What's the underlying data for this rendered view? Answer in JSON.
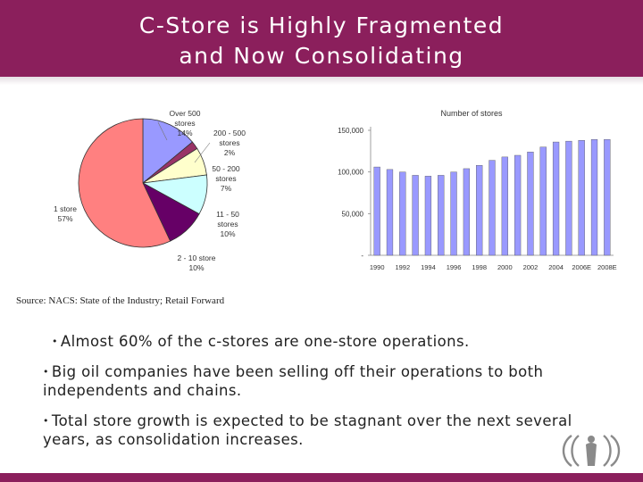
{
  "slide": {
    "title_line1": "C-Store is Highly Fragmented",
    "title_line2": "and Now Consolidating",
    "source": "Source: NACS: State of the Industry; Retail Forward",
    "bullets": [
      "Almost 60% of the c-stores are one-store operations.",
      "Big oil companies have been selling off their operations to both independents and chains.",
      "Total store growth is expected to be stagnant over the next several years, as consolidation increases."
    ],
    "colors": {
      "brand": "#8b1f5c",
      "pie_over500": "#9999ff",
      "pie_200_500": "#993366",
      "pie_50_200": "#ffffcc",
      "pie_11_50": "#ccffff",
      "pie_2_10": "#660066",
      "pie_1store": "#ff8080",
      "bars": "#9999ff"
    }
  },
  "chart_data": [
    {
      "type": "pie",
      "slices": [
        {
          "label_lines": [
            "Over 500",
            "stores",
            "14%"
          ],
          "value": 14
        },
        {
          "label_lines": [
            "200 - 500",
            "stores",
            "2%"
          ],
          "value": 2
        },
        {
          "label_lines": [
            "50 - 200",
            "stores",
            "7%"
          ],
          "value": 7
        },
        {
          "label_lines": [
            "11 - 50",
            "stores",
            "10%"
          ],
          "value": 10
        },
        {
          "label_lines": [
            "2 - 10 store",
            "10%"
          ],
          "value": 10
        },
        {
          "label_lines": [
            "1 store",
            "57%"
          ],
          "value": 57
        }
      ]
    },
    {
      "type": "bar",
      "title": "Number of stores",
      "categories": [
        "1990",
        "",
        "1992",
        "",
        "1994",
        "",
        "1996",
        "",
        "1998",
        "",
        "2000",
        "",
        "2002",
        "",
        "2004",
        "",
        "2006E",
        "",
        "2008E"
      ],
      "values": [
        106000,
        103000,
        100000,
        96000,
        95000,
        96000,
        100000,
        104000,
        108000,
        114000,
        118000,
        120000,
        124000,
        130000,
        136000,
        137000,
        138000,
        139000,
        139000
      ],
      "yticks": [
        {
          "value": 150000,
          "label": "150,000"
        },
        {
          "value": 100000,
          "label": "100,000"
        },
        {
          "value": 50000,
          "label": "50,000"
        },
        {
          "value": 0,
          "label": "-"
        }
      ],
      "ylim": [
        0,
        150000
      ]
    }
  ]
}
